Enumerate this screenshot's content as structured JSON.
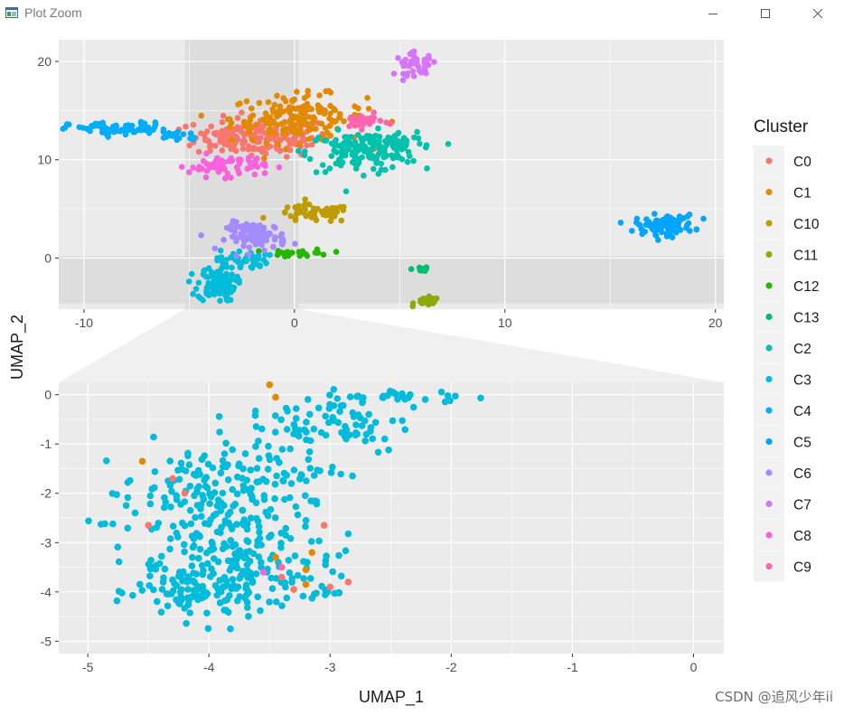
{
  "window": {
    "title": "Plot Zoom",
    "controls": [
      "minimize",
      "maximize",
      "close"
    ]
  },
  "watermark": "CSDN @追风少年ii",
  "colors": {
    "panel_bg": "#EBEBEB",
    "grid": "#FFFFFF",
    "highlight": "#DCDCDC",
    "tick_text": "#4D4D4D",
    "axis_text": "#1A1A1A"
  },
  "chart_data": [
    {
      "type": "scatter",
      "panel": "main",
      "xlabel": "",
      "ylabel": "UMAP_2",
      "xlim": [
        -11.2,
        20.4
      ],
      "ylim": [
        -5.2,
        22.2
      ],
      "xticks": [
        -10,
        0,
        10,
        20
      ],
      "xtick_labels": [
        "-10",
        "0",
        "10",
        "20"
      ],
      "yticks": [
        0,
        10,
        20
      ],
      "ytick_labels": [
        "0",
        "10",
        "20"
      ],
      "grid": true,
      "zoom_region": {
        "x": [
          -5.2,
          0.2
        ],
        "y": [
          -4.6,
          0.2
        ]
      },
      "clusters": [
        {
          "name": "C0",
          "color": "#F8766D",
          "points": [
            {
              "x": -1.5,
              "y": 12.3,
              "sx": 1.6,
              "sy": 1.0,
              "n": 160
            },
            {
              "x": -3.4,
              "y": 12.5,
              "sx": 0.6,
              "sy": 0.5,
              "n": 30
            }
          ]
        },
        {
          "name": "C1",
          "color": "#E18A00",
          "points": [
            {
              "x": 0.2,
              "y": 14.2,
              "sx": 1.6,
              "sy": 1.2,
              "n": 170
            }
          ]
        },
        {
          "name": "C10",
          "color": "#BE9C00",
          "points": [
            {
              "x": 0.9,
              "y": 4.5,
              "sx": 0.9,
              "sy": 0.45,
              "n": 60
            }
          ]
        },
        {
          "name": "C11",
          "color": "#8CAB00",
          "points": [
            {
              "x": 6.3,
              "y": -4.4,
              "sx": 0.3,
              "sy": 0.2,
              "n": 30
            }
          ]
        },
        {
          "name": "C12",
          "color": "#24B700",
          "points": [
            {
              "x": 0.3,
              "y": 0.5,
              "sx": 0.7,
              "sy": 0.2,
              "n": 25
            }
          ]
        },
        {
          "name": "C13",
          "color": "#00BE70",
          "points": [
            {
              "x": 6.0,
              "y": -1.1,
              "sx": 0.2,
              "sy": 0.12,
              "n": 10
            }
          ]
        },
        {
          "name": "C2",
          "color": "#00C1AB",
          "points": [
            {
              "x": 3.2,
              "y": 10.8,
              "sx": 1.3,
              "sy": 1.0,
              "n": 150
            },
            {
              "x": 5.0,
              "y": 11.8,
              "sx": 0.6,
              "sy": 0.5,
              "n": 40
            }
          ]
        },
        {
          "name": "C3",
          "color": "#00BBDA",
          "points": [
            {
              "x": -3.7,
              "y": -2.6,
              "sx": 0.45,
              "sy": 0.9,
              "n": 110
            },
            {
              "x": -2.5,
              "y": -0.2,
              "sx": 0.6,
              "sy": 0.5,
              "n": 40
            }
          ]
        },
        {
          "name": "C4",
          "color": "#00ACFC",
          "points": [
            {
              "x": -8.3,
              "y": 13.1,
              "sx": 1.2,
              "sy": 0.35,
              "n": 70
            },
            {
              "x": -5.6,
              "y": 12.5,
              "sx": 0.6,
              "sy": 0.3,
              "n": 20
            }
          ]
        },
        {
          "name": "C5",
          "color": "#00A5FF",
          "points": [
            {
              "x": 17.6,
              "y": 3.4,
              "sx": 0.7,
              "sy": 0.5,
              "n": 90
            }
          ]
        },
        {
          "name": "C6",
          "color": "#A58AFF",
          "points": [
            {
              "x": -1.8,
              "y": 2.2,
              "sx": 0.7,
              "sy": 0.7,
              "n": 90
            }
          ]
        },
        {
          "name": "C7",
          "color": "#D575FE",
          "points": [
            {
              "x": 5.8,
              "y": 19.7,
              "sx": 0.5,
              "sy": 0.55,
              "n": 40
            }
          ]
        },
        {
          "name": "C8",
          "color": "#F962DD",
          "points": [
            {
              "x": -3.2,
              "y": 9.4,
              "sx": 0.9,
              "sy": 0.55,
              "n": 70
            }
          ]
        },
        {
          "name": "C9",
          "color": "#FF65AC",
          "points": [
            {
              "x": 3.2,
              "y": 13.9,
              "sx": 0.5,
              "sy": 0.35,
              "n": 30
            }
          ]
        }
      ]
    },
    {
      "type": "scatter",
      "panel": "zoom",
      "xlabel": "UMAP_1",
      "ylabel": "",
      "xlim": [
        -5.24,
        0.25
      ],
      "ylim": [
        -5.25,
        0.25
      ],
      "xticks": [
        -5,
        -4,
        -3,
        -2,
        -1,
        0
      ],
      "xtick_labels": [
        "-5",
        "-4",
        "-3",
        "-2",
        "-1",
        "0"
      ],
      "yticks": [
        0,
        -1,
        -2,
        -3,
        -4,
        -5
      ],
      "ytick_labels": [
        "0",
        "-1",
        "-2",
        "-3",
        "-4",
        "-5"
      ],
      "grid": true,
      "points": [
        {
          "x": -4.1,
          "y": -4.0,
          "sx": 0.25,
          "sy": 0.3,
          "n": 90,
          "c": "C3"
        },
        {
          "x": -3.7,
          "y": -3.6,
          "sx": 0.35,
          "sy": 0.4,
          "n": 110,
          "c": "C3"
        },
        {
          "x": -3.85,
          "y": -2.7,
          "sx": 0.35,
          "sy": 0.45,
          "n": 110,
          "c": "C3"
        },
        {
          "x": -4.2,
          "y": -1.9,
          "sx": 0.25,
          "sy": 0.35,
          "n": 60,
          "c": "C3"
        },
        {
          "x": -3.6,
          "y": -1.5,
          "sx": 0.35,
          "sy": 0.35,
          "n": 70,
          "c": "C3"
        },
        {
          "x": -3.0,
          "y": -0.6,
          "sx": 0.35,
          "sy": 0.3,
          "n": 70,
          "c": "C3"
        },
        {
          "x": -2.4,
          "y": -0.05,
          "sx": 0.3,
          "sy": 0.08,
          "n": 35,
          "c": "C3"
        },
        {
          "x": -4.45,
          "y": -3.45,
          "sx": 0.08,
          "sy": 0.08,
          "n": 8,
          "c": "C3"
        },
        {
          "x": -3.0,
          "y": -4.05,
          "sx": 0.08,
          "sy": 0.05,
          "n": 10,
          "c": "C3"
        },
        {
          "x": -4.9,
          "y": -2.6,
          "sx": 0.06,
          "sy": 0.03,
          "n": 4,
          "c": "C3"
        }
      ],
      "singles": [
        {
          "x": -3.5,
          "y": 0.2,
          "c": "C1"
        },
        {
          "x": -3.45,
          "y": -0.05,
          "c": "C1"
        },
        {
          "x": -4.55,
          "y": -1.35,
          "c": "C1"
        },
        {
          "x": -3.45,
          "y": -3.3,
          "c": "C1"
        },
        {
          "x": -3.2,
          "y": -3.55,
          "c": "C1"
        },
        {
          "x": -3.2,
          "y": -3.85,
          "c": "C1"
        },
        {
          "x": -3.15,
          "y": -3.2,
          "c": "C1"
        },
        {
          "x": -4.5,
          "y": -2.65,
          "c": "C0"
        },
        {
          "x": -4.3,
          "y": -1.7,
          "c": "C0"
        },
        {
          "x": -3.05,
          "y": -2.65,
          "c": "C0"
        },
        {
          "x": -3.3,
          "y": -3.95,
          "c": "C0"
        },
        {
          "x": -2.85,
          "y": -3.8,
          "c": "C0"
        },
        {
          "x": -3.4,
          "y": -3.7,
          "c": "C0"
        },
        {
          "x": -3.0,
          "y": -3.9,
          "c": "C0"
        },
        {
          "x": -4.2,
          "y": -2.0,
          "c": "C0"
        },
        {
          "x": -3.55,
          "y": -3.6,
          "c": "C8"
        },
        {
          "x": -3.4,
          "y": -3.5,
          "c": "C9"
        }
      ]
    }
  ],
  "legend": {
    "title": "Cluster",
    "items": [
      "C0",
      "C1",
      "C10",
      "C11",
      "C12",
      "C13",
      "C2",
      "C3",
      "C4",
      "C5",
      "C6",
      "C7",
      "C8",
      "C9"
    ]
  }
}
